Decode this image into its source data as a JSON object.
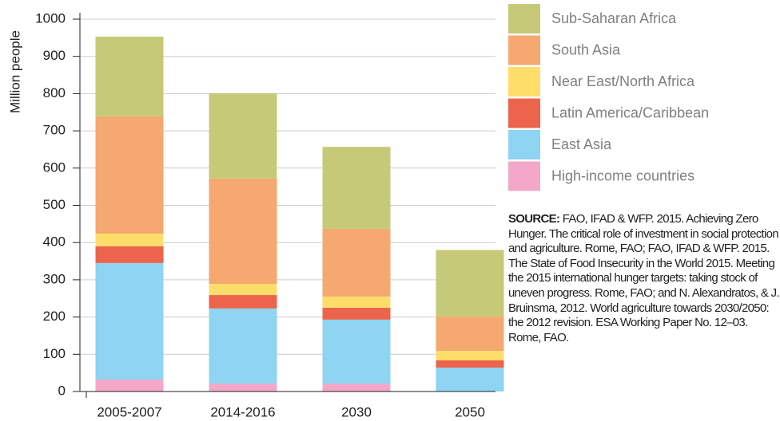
{
  "chart_data": {
    "type": "stacked-bar",
    "y_label": "Million people",
    "categories": [
      "2005-2007",
      "2014-2016",
      "2030",
      "2050"
    ],
    "series": [
      {
        "name": "High-income countries",
        "color": "#f4a8c9",
        "values": [
          32,
          21,
          21,
          0
        ]
      },
      {
        "name": "East Asia",
        "color": "#8fd4f2",
        "values": [
          313,
          202,
          172,
          64
        ]
      },
      {
        "name": "Latin America/Caribbean",
        "color": "#ec644b",
        "values": [
          45,
          36,
          32,
          20
        ]
      },
      {
        "name": "Near East/North Africa",
        "color": "#fedd6b",
        "values": [
          34,
          30,
          30,
          25
        ]
      },
      {
        "name": "South Asia",
        "color": "#f5a870",
        "values": [
          315,
          283,
          182,
          92
        ]
      },
      {
        "name": "Sub-Saharan Africa",
        "color": "#c6ca78",
        "values": [
          214,
          229,
          220,
          179
        ]
      }
    ],
    "ylim": [
      0,
      1000
    ],
    "yticks": [
      0,
      100,
      200,
      300,
      400,
      500,
      600,
      700,
      800,
      900,
      1000
    ],
    "grid": true,
    "source_label": "SOURCE:",
    "source_text": "FAO, IFAD & WFP. 2015. Achieving Zero Hunger. The critical role of investment in social protection and agriculture. Rome, FAO; FAO, IFAD & WFP. 2015. The State of Food Insecurity in the World 2015. Meeting the 2015 international hunger targets: taking stock of uneven progress. Rome, FAO; and N. Alexandratos, & J. Bruinsma, 2012. World agriculture towards 2030/2050: the 2012 revision. ESA Working Paper No. 12–03. Rome, FAO."
  }
}
